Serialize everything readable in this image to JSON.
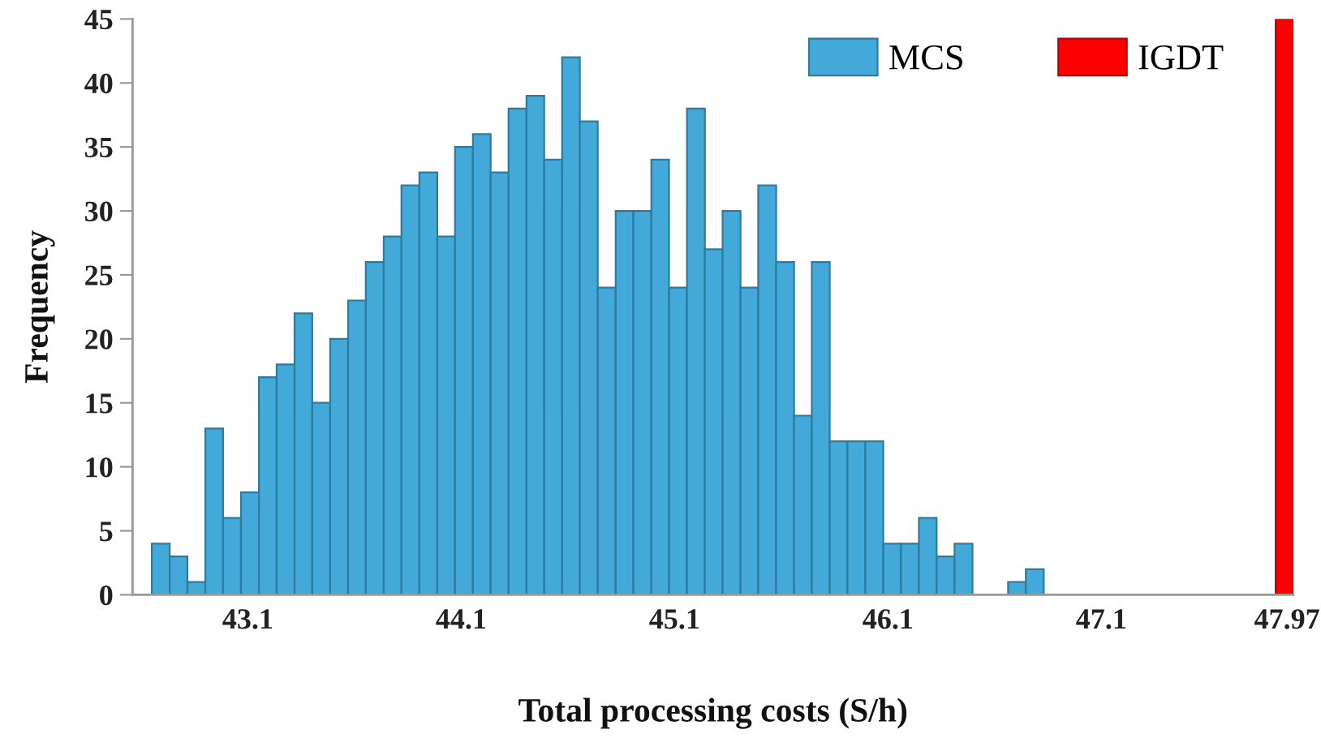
{
  "chart_data": {
    "type": "histogram",
    "xlabel": "Total processing costs (S/h)",
    "ylabel": "Frequency",
    "bins": [
      42.65,
      42.734,
      42.817,
      42.901,
      42.984,
      43.068,
      43.152,
      43.235,
      43.319,
      43.402,
      43.486,
      43.57,
      43.653,
      43.737,
      43.82,
      43.904,
      43.988,
      44.071,
      44.155,
      44.238,
      44.322,
      44.406,
      44.489,
      44.573,
      44.656,
      44.74,
      44.824,
      44.907,
      44.991,
      45.074,
      45.158,
      45.242,
      45.325,
      45.409,
      45.492,
      45.576,
      45.66,
      45.743,
      45.827,
      45.91,
      45.994,
      46.078,
      46.161,
      46.245,
      46.328,
      46.412,
      46.496,
      46.579,
      46.663,
      46.746,
      46.83,
      46.914,
      46.997,
      47.081,
      47.164,
      47.248,
      47.332,
      47.415,
      47.499,
      47.582,
      47.666,
      47.75,
      47.833,
      47.917,
      48.0
    ],
    "series": [
      {
        "name": "MCS",
        "color": "#42a9d9",
        "values": [
          4,
          3,
          1,
          13,
          6,
          8,
          17,
          18,
          22,
          15,
          20,
          23,
          26,
          28,
          32,
          33,
          28,
          35,
          36,
          33,
          38,
          39,
          34,
          42,
          37,
          24,
          30,
          30,
          34,
          24,
          38,
          27,
          30,
          24,
          32,
          26,
          14,
          26,
          12,
          12,
          12,
          4,
          4,
          6,
          3,
          4,
          null,
          null,
          1,
          2,
          null,
          null,
          null,
          null,
          null,
          null,
          null,
          null,
          null,
          null,
          null,
          null,
          null,
          null
        ]
      },
      {
        "name": "IGDT",
        "color": "#ff0000",
        "values": [
          null,
          null,
          null,
          null,
          null,
          null,
          null,
          null,
          null,
          null,
          null,
          null,
          null,
          null,
          null,
          null,
          null,
          null,
          null,
          null,
          null,
          null,
          null,
          null,
          null,
          null,
          null,
          null,
          null,
          null,
          null,
          null,
          null,
          null,
          null,
          null,
          null,
          null,
          null,
          null,
          null,
          null,
          null,
          null,
          null,
          null,
          null,
          null,
          null,
          null,
          null,
          null,
          null,
          null,
          null,
          null,
          null,
          null,
          null,
          null,
          null,
          null,
          null,
          45
        ]
      }
    ],
    "xlim": [
      42.56,
      48.0
    ],
    "ylim": [
      0,
      45
    ],
    "xticks": [
      43.1,
      44.1,
      45.1,
      46.1,
      47.1,
      47.97
    ],
    "yticks": [
      0,
      5,
      10,
      15,
      20,
      25,
      30,
      35,
      40,
      45
    ],
    "legend": "top right"
  }
}
